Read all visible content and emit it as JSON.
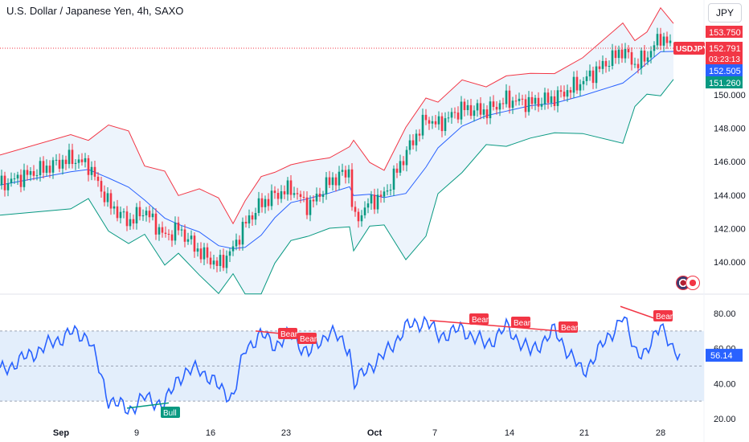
{
  "header": {
    "title": "U.S. Dollar / Japanese Yen, 4h, SAXO",
    "currency_button": "JPY"
  },
  "colors": {
    "upper_band": "#f23645",
    "basis": "#2962ff",
    "lower_band": "#089981",
    "band_fill": "#e8f1fb",
    "candle_up": "#089981",
    "candle_down": "#f23645",
    "rsi_line": "#2962ff",
    "rsi_band": "#e3eefb",
    "bear_label": "#f23645",
    "bull_label": "#089981"
  },
  "price_axis": {
    "ticks": [
      "140.000",
      "142.000",
      "144.000",
      "146.000",
      "148.000",
      "150.000"
    ],
    "labels": [
      {
        "name": "upper",
        "text": "153.750",
        "value": 153.75,
        "bg": "#f23645"
      },
      {
        "name": "symbol",
        "text": "USDJPY",
        "value": 152.79,
        "bg": "#f23645",
        "left_tag": true
      },
      {
        "name": "last-price",
        "text": "152.791",
        "sub": "03:23:13",
        "value": 152.791,
        "bg": "#f23645"
      },
      {
        "name": "basis",
        "text": "152.505",
        "value": 152.505,
        "bg": "#2962ff"
      },
      {
        "name": "lower",
        "text": "151.260",
        "value": 151.26,
        "bg": "#089981"
      }
    ]
  },
  "rsi_axis": {
    "ticks": [
      "20.00",
      "40.00",
      "60.00",
      "80.00"
    ],
    "current": "56.14"
  },
  "time_axis": {
    "labels": [
      "Sep",
      "9",
      "16",
      "23",
      "Oct",
      "7",
      "14",
      "21",
      "28"
    ]
  },
  "divergence_labels": [
    {
      "text": "Bull",
      "type": "bull"
    },
    {
      "text": "Bear",
      "type": "bear"
    },
    {
      "text": "Bear",
      "type": "bear"
    },
    {
      "text": "Bear",
      "type": "bear"
    },
    {
      "text": "Bear",
      "type": "bear"
    },
    {
      "text": "Bear",
      "type": "bear"
    },
    {
      "text": "Bear",
      "type": "bear"
    }
  ],
  "chart_data": [
    {
      "type": "candlestick",
      "symbol": "USDJPY",
      "interval": "4h",
      "ylim": [
        138.5,
        151.5
      ],
      "indicators": [
        "Bollinger Bands"
      ],
      "last": 152.791,
      "upper_band_last": 153.75,
      "basis_last": 152.505,
      "lower_band_last": 151.26,
      "close_path": [
        {
          "x": "Aug 30",
          "close": 144.6
        },
        {
          "x": "Sep 2",
          "close": 146.2
        },
        {
          "x": "Sep 3",
          "close": 145.8
        },
        {
          "x": "Sep 5",
          "close": 143.5
        },
        {
          "x": "Sep 6",
          "close": 142.4
        },
        {
          "x": "Sep 9",
          "close": 143.1
        },
        {
          "x": "Sep 11",
          "close": 141.5
        },
        {
          "x": "Sep 12",
          "close": 142.0
        },
        {
          "x": "Sep 13",
          "close": 140.6
        },
        {
          "x": "Sep 16",
          "close": 139.8
        },
        {
          "x": "Sep 17",
          "close": 140.8
        },
        {
          "x": "Sep 18",
          "close": 142.3
        },
        {
          "x": "Sep 19",
          "close": 143.5
        },
        {
          "x": "Sep 20",
          "close": 144.0
        },
        {
          "x": "Sep 23",
          "close": 144.4
        },
        {
          "x": "Sep 24",
          "close": 143.3
        },
        {
          "x": "Sep 26",
          "close": 144.8
        },
        {
          "x": "Sep 27",
          "close": 145.5
        },
        {
          "x": "Sep 27 late",
          "close": 142.3
        },
        {
          "x": "Sep 30",
          "close": 143.6
        },
        {
          "x": "Oct 1",
          "close": 144.0
        },
        {
          "x": "Oct 3",
          "close": 146.5
        },
        {
          "x": "Oct 4",
          "close": 148.6
        },
        {
          "x": "Oct 7",
          "close": 148.2
        },
        {
          "x": "Oct 9",
          "close": 149.2
        },
        {
          "x": "Oct 11",
          "close": 149.0
        },
        {
          "x": "Oct 14",
          "close": 149.7
        },
        {
          "x": "Oct 16",
          "close": 149.5
        },
        {
          "x": "Oct 18",
          "close": 149.8
        },
        {
          "x": "Oct 21",
          "close": 150.8
        },
        {
          "x": "Oct 23",
          "close": 152.7
        },
        {
          "x": "Oct 24",
          "close": 151.8
        },
        {
          "x": "Oct 25",
          "close": 152.3
        },
        {
          "x": "Oct 28",
          "close": 153.5
        },
        {
          "x": "Oct 29",
          "close": 152.79
        }
      ]
    },
    {
      "type": "line",
      "name": "RSI",
      "ylim": [
        20,
        85
      ],
      "band": [
        30,
        70
      ],
      "midline": 50,
      "current": 56.14,
      "points": [
        {
          "x": "Aug 30",
          "y": 47
        },
        {
          "x": "Sep 2",
          "y": 69
        },
        {
          "x": "Sep 3",
          "y": 67
        },
        {
          "x": "Sep 5",
          "y": 31
        },
        {
          "x": "Sep 6",
          "y": 25
        },
        {
          "x": "Sep 9",
          "y": 32
        },
        {
          "x": "Sep 11",
          "y": 28
        },
        {
          "x": "Sep 12",
          "y": 44
        },
        {
          "x": "Sep 13",
          "y": 49
        },
        {
          "x": "Sep 16",
          "y": 38
        },
        {
          "x": "Sep 17",
          "y": 32
        },
        {
          "x": "Sep 18",
          "y": 60
        },
        {
          "x": "Sep 19",
          "y": 68
        },
        {
          "x": "Sep 20",
          "y": 62
        },
        {
          "x": "Sep 23",
          "y": 68
        },
        {
          "x": "Sep 24",
          "y": 57
        },
        {
          "x": "Sep 26",
          "y": 70
        },
        {
          "x": "Sep 27",
          "y": 60
        },
        {
          "x": "Sep 27 late",
          "y": 39
        },
        {
          "x": "Sep 30",
          "y": 50
        },
        {
          "x": "Oct 1",
          "y": 56
        },
        {
          "x": "Oct 3",
          "y": 72
        },
        {
          "x": "Oct 4",
          "y": 76
        },
        {
          "x": "Oct 7",
          "y": 67
        },
        {
          "x": "Oct 9",
          "y": 71
        },
        {
          "x": "Oct 11",
          "y": 62
        },
        {
          "x": "Oct 14",
          "y": 72
        },
        {
          "x": "Oct 16",
          "y": 58
        },
        {
          "x": "Oct 18",
          "y": 70
        },
        {
          "x": "Oct 21",
          "y": 46
        },
        {
          "x": "Oct 23",
          "y": 78
        },
        {
          "x": "Oct 24",
          "y": 60
        },
        {
          "x": "Oct 25",
          "y": 56
        },
        {
          "x": "Oct 28",
          "y": 76
        },
        {
          "x": "Oct 29",
          "y": 56.14
        }
      ]
    }
  ]
}
